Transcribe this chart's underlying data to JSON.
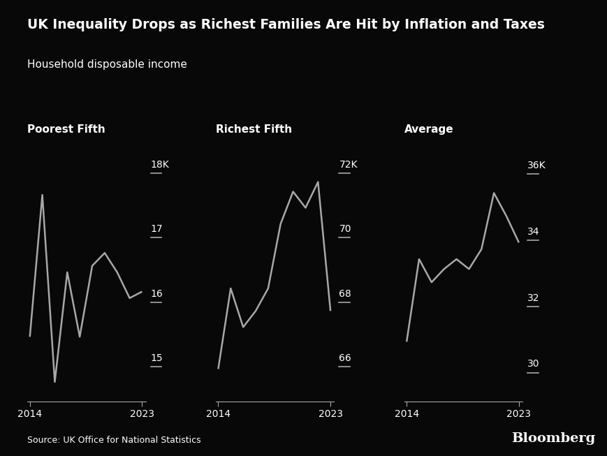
{
  "title": "UK Inequality Drops as Richest Families Are Hit by Inflation and Taxes",
  "subtitle": "Household disposable income",
  "background_color": "#080808",
  "text_color": "#ffffff",
  "line_color": "#a8a8a8",
  "source": "Source: UK Office for National Statistics",
  "bloomberg": "Bloomberg",
  "panels": [
    {
      "label": "Poorest Fifth",
      "x": [
        2014,
        2015,
        2016,
        2017,
        2018,
        2019,
        2020,
        2021,
        2022,
        2023
      ],
      "y": [
        15.5,
        17.7,
        14.8,
        16.5,
        15.5,
        16.6,
        16.8,
        16.5,
        16.1,
        16.2
      ],
      "ylim": [
        14.5,
        18.6
      ],
      "yticks": [
        15,
        16,
        17,
        18
      ],
      "ytick_labels": [
        "15",
        "16",
        "17",
        "18K"
      ]
    },
    {
      "label": "Richest Fifth",
      "x": [
        2014,
        2015,
        2016,
        2017,
        2018,
        2019,
        2020,
        2021,
        2022,
        2023
      ],
      "y": [
        66.0,
        68.5,
        67.3,
        67.8,
        68.5,
        70.5,
        71.5,
        71.0,
        71.8,
        67.8
      ],
      "ylim": [
        65.0,
        73.2
      ],
      "yticks": [
        66,
        68,
        70,
        72
      ],
      "ytick_labels": [
        "66",
        "68",
        "70",
        "72K"
      ]
    },
    {
      "label": "Average",
      "x": [
        2014,
        2015,
        2016,
        2017,
        2018,
        2019,
        2020,
        2021,
        2022,
        2023
      ],
      "y": [
        31.0,
        33.5,
        32.8,
        33.2,
        33.5,
        33.2,
        33.8,
        35.5,
        34.8,
        34.0
      ],
      "ylim": [
        29.2,
        37.2
      ],
      "yticks": [
        30,
        32,
        34,
        36
      ],
      "ytick_labels": [
        "30",
        "32",
        "34",
        "36K"
      ]
    }
  ]
}
